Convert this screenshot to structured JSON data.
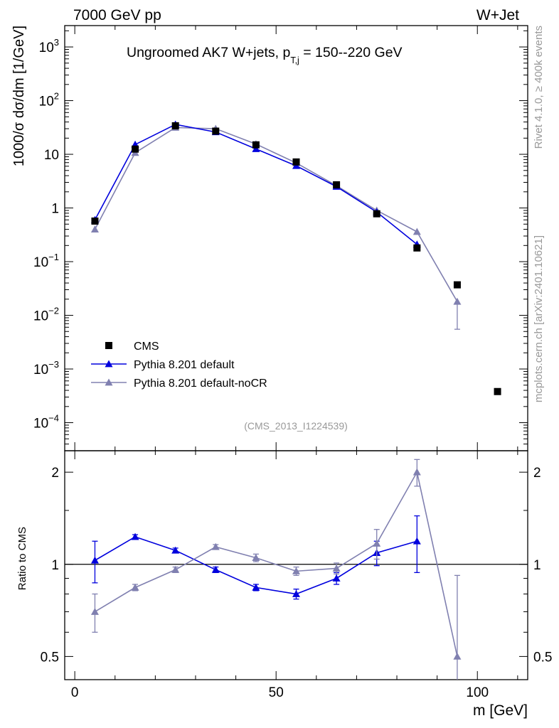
{
  "header": {
    "left": "7000 GeV pp",
    "right": "W+Jet"
  },
  "side_labels": {
    "rivet": "Rivet 4.1.0, ≥ 400k events",
    "mcplots": "mcplots.cern.ch [arXiv:2401.10621]"
  },
  "title": {
    "main": "Ungroomed AK7 W+jets, p",
    "sub": "T,j",
    "range": " = 150--220 GeV"
  },
  "analysis_id": "(CMS_2013_I1224539)",
  "upper_ylabel": "1000/σ  dσ/dm [1/GeV]",
  "lower_ylabel": "Ratio to CMS",
  "xlabel": "m [GeV]",
  "colors": {
    "data": "#000000",
    "default": "#0000dd",
    "nocr": "#8080b0"
  },
  "chart_data": [
    {
      "type": "scatter",
      "panel": "main",
      "yscale": "log",
      "ylim": [
        3e-05,
        2500
      ],
      "xlim": [
        -2.5,
        112.5
      ],
      "xlabel": "m [GeV]",
      "ylabel": "1000/σ dσ/dm [1/GeV]",
      "yticks": [
        {
          "base": "10",
          "exp": "3"
        },
        {
          "base": "10",
          "exp": "2"
        },
        {
          "base": "10",
          "exp": ""
        },
        {
          "base": "1",
          "exp": ""
        },
        {
          "base": "10",
          "exp": "−1"
        },
        {
          "base": "10",
          "exp": "−2"
        },
        {
          "base": "10",
          "exp": "−3"
        },
        {
          "base": "10",
          "exp": "−4"
        }
      ],
      "ytick_values": [
        1000,
        100,
        10,
        1,
        0.1,
        0.01,
        0.001,
        0.0001
      ],
      "legend_position": "middle-left",
      "series": [
        {
          "name": "CMS",
          "marker": "square",
          "x": [
            5,
            15,
            25,
            35,
            45,
            55,
            65,
            75,
            85,
            95,
            105
          ],
          "values": [
            0.57,
            12.5,
            34,
            27,
            15,
            7.2,
            2.7,
            0.78,
            0.18,
            0.037,
            0.00038
          ]
        },
        {
          "name": "Pythia 8.201 default",
          "marker": "triangle",
          "x": [
            5,
            15,
            25,
            35,
            45,
            55,
            65,
            75,
            85
          ],
          "values": [
            0.6,
            15.2,
            36,
            26,
            12.6,
            6.1,
            2.5,
            0.84,
            0.21
          ]
        },
        {
          "name": "Pythia 8.201 default-noCR",
          "marker": "triangle",
          "x": [
            5,
            15,
            25,
            35,
            45,
            55,
            65,
            75,
            85,
            95
          ],
          "values": [
            0.4,
            10.7,
            31.5,
            30,
            15.5,
            6.9,
            2.6,
            0.9,
            0.36,
            0.018
          ],
          "err_low": [
            0,
            0,
            0,
            0,
            0,
            0,
            0,
            0,
            0,
            0.0125
          ],
          "err_high": [
            0,
            0,
            0,
            0,
            0,
            0,
            0,
            0,
            0,
            0
          ]
        }
      ]
    },
    {
      "type": "line",
      "panel": "ratio",
      "yscale": "log",
      "ylim": [
        0.42,
        2.35
      ],
      "xlim": [
        -2.5,
        112.5
      ],
      "xlabel": "m [GeV]",
      "ylabel": "Ratio to CMS",
      "yticks": [
        "2",
        "1",
        "0.5"
      ],
      "ytick_values": [
        2,
        1,
        0.5
      ],
      "xticks": [
        "0",
        "50",
        "100"
      ],
      "xtick_values": [
        0,
        50,
        100
      ],
      "reference": 1,
      "series": [
        {
          "name": "Pythia 8.201 default",
          "x": [
            5,
            15,
            25,
            35,
            45,
            55,
            65,
            75,
            85
          ],
          "values": [
            1.03,
            1.23,
            1.11,
            0.96,
            0.84,
            0.8,
            0.9,
            1.09,
            1.19
          ],
          "err": [
            0.16,
            0.02,
            0.02,
            0.02,
            0.02,
            0.03,
            0.04,
            0.1,
            0.25
          ]
        },
        {
          "name": "Pythia 8.201 default-noCR",
          "x": [
            5,
            15,
            25,
            35,
            45,
            55,
            65,
            75,
            85,
            95
          ],
          "values": [
            0.7,
            0.84,
            0.96,
            1.14,
            1.05,
            0.95,
            0.97,
            1.17,
            2.0,
            0.5
          ],
          "err": [
            0.1,
            0.02,
            0.02,
            0.02,
            0.03,
            0.03,
            0.04,
            0.13,
            0.2,
            0.42
          ]
        }
      ]
    }
  ]
}
